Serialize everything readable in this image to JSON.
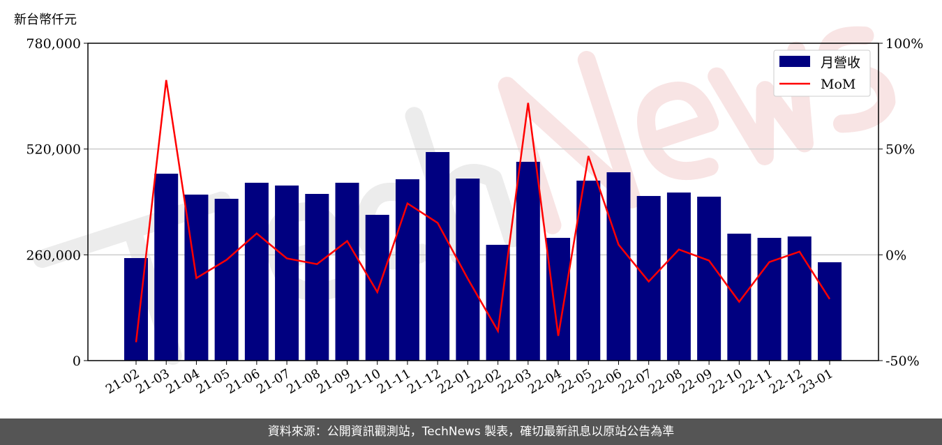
{
  "chart_data": {
    "type": "bar+line",
    "ylabel_left": "新台幣仟元",
    "categories": [
      "21-02",
      "21-03",
      "21-04",
      "21-05",
      "21-06",
      "21-07",
      "21-08",
      "21-09",
      "21-10",
      "21-11",
      "21-12",
      "22-01",
      "22-02",
      "22-03",
      "22-04",
      "22-05",
      "22-06",
      "22-07",
      "22-08",
      "22-09",
      "22-10",
      "22-11",
      "22-12",
      "23-01"
    ],
    "series": [
      {
        "name": "月營收",
        "type": "bar",
        "axis": "left",
        "color": "#000080",
        "values": [
          252000,
          459400,
          408000,
          397700,
          437100,
          430300,
          409700,
          437100,
          358300,
          445700,
          512600,
          447400,
          284600,
          488600,
          301700,
          442300,
          462900,
          404600,
          413100,
          402900,
          312000,
          301700,
          305100,
          241700
        ]
      },
      {
        "name": "MoM",
        "type": "line",
        "axis": "right",
        "color": "#ff0000",
        "values": [
          -41.3,
          82.6,
          -11.0,
          -2.4,
          10.1,
          -1.7,
          -4.4,
          6.5,
          -17.6,
          24.3,
          15.1,
          -11.3,
          -36.0,
          71.8,
          -38.3,
          46.7,
          4.8,
          -12.6,
          2.5,
          -2.7,
          -22.2,
          -3.4,
          1.5,
          -20.9
        ]
      }
    ],
    "ylim_left": [
      0,
      780000
    ],
    "yticks_left": [
      "0",
      "260,000",
      "520,000",
      "780,000"
    ],
    "ylim_right": [
      -50,
      100
    ],
    "yticks_right": [
      "-50%",
      "0%",
      "50%",
      "100%"
    ],
    "grid": "horizontal",
    "legend": "top-right",
    "watermark": "TechNews"
  },
  "footer": "資料來源：公開資訊觀測站，TechNews 製表，確切最新訊息以原站公告為準"
}
